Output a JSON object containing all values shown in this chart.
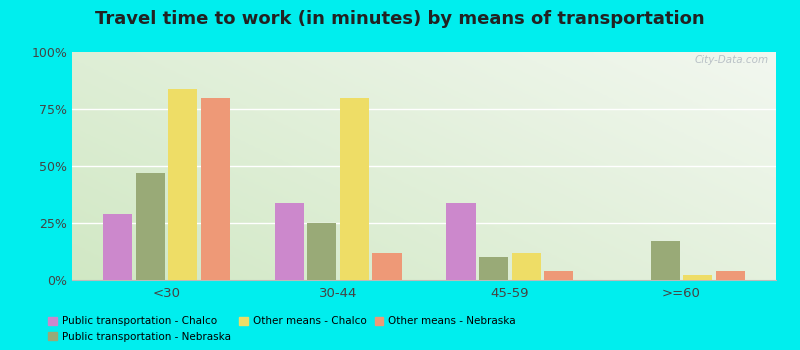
{
  "title": "Travel time to work (in minutes) by means of transportation",
  "categories": [
    "<30",
    "30-44",
    "45-59",
    ">=60"
  ],
  "series": {
    "Public transportation - Chalco": [
      29,
      34,
      34,
      0
    ],
    "Public transportation - Nebraska": [
      47,
      25,
      10,
      17
    ],
    "Other means - Chalco": [
      84,
      80,
      12,
      2
    ],
    "Other means - Nebraska": [
      80,
      12,
      4,
      4
    ]
  },
  "colors": {
    "Public transportation - Chalco": "#cc88cc",
    "Public transportation - Nebraska": "#99aa77",
    "Other means - Chalco": "#eedd66",
    "Other means - Nebraska": "#ee9977"
  },
  "ylim": [
    0,
    100
  ],
  "yticks": [
    0,
    25,
    50,
    75,
    100
  ],
  "ytick_labels": [
    "0%",
    "25%",
    "50%",
    "75%",
    "100%"
  ],
  "background_color_left": "#d4e8c8",
  "background_color_right": "#f0f5ee",
  "outer_background": "#00eeee",
  "title_fontsize": 13,
  "watermark": "City-Data.com"
}
